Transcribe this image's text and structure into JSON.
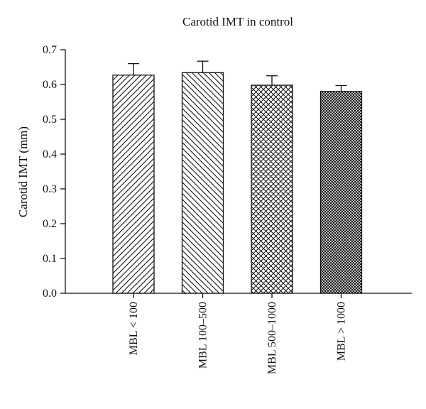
{
  "chart_data": {
    "type": "bar",
    "title": "Carotid IMT in control",
    "xlabel": "",
    "ylabel": "Carotid IMT (mm)",
    "categories": [
      "MBL < 100",
      "MBL 100–500",
      "MBL 500–1000",
      "MBL > 1000"
    ],
    "values": [
      0.627,
      0.634,
      0.598,
      0.58
    ],
    "error_upper": [
      0.033,
      0.033,
      0.027,
      0.017
    ],
    "ylim": [
      0,
      0.7
    ],
    "yticks": [
      "0.0",
      "0.1",
      "0.2",
      "0.3",
      "0.4",
      "0.5",
      "0.6",
      "0.7"
    ],
    "patterns": [
      "diagonal-right",
      "diagonal-left",
      "crosshatch",
      "dense-crosshatch"
    ],
    "bar_color": "#ffffff",
    "line_color": "#111111",
    "grid": false,
    "legend": "none"
  }
}
